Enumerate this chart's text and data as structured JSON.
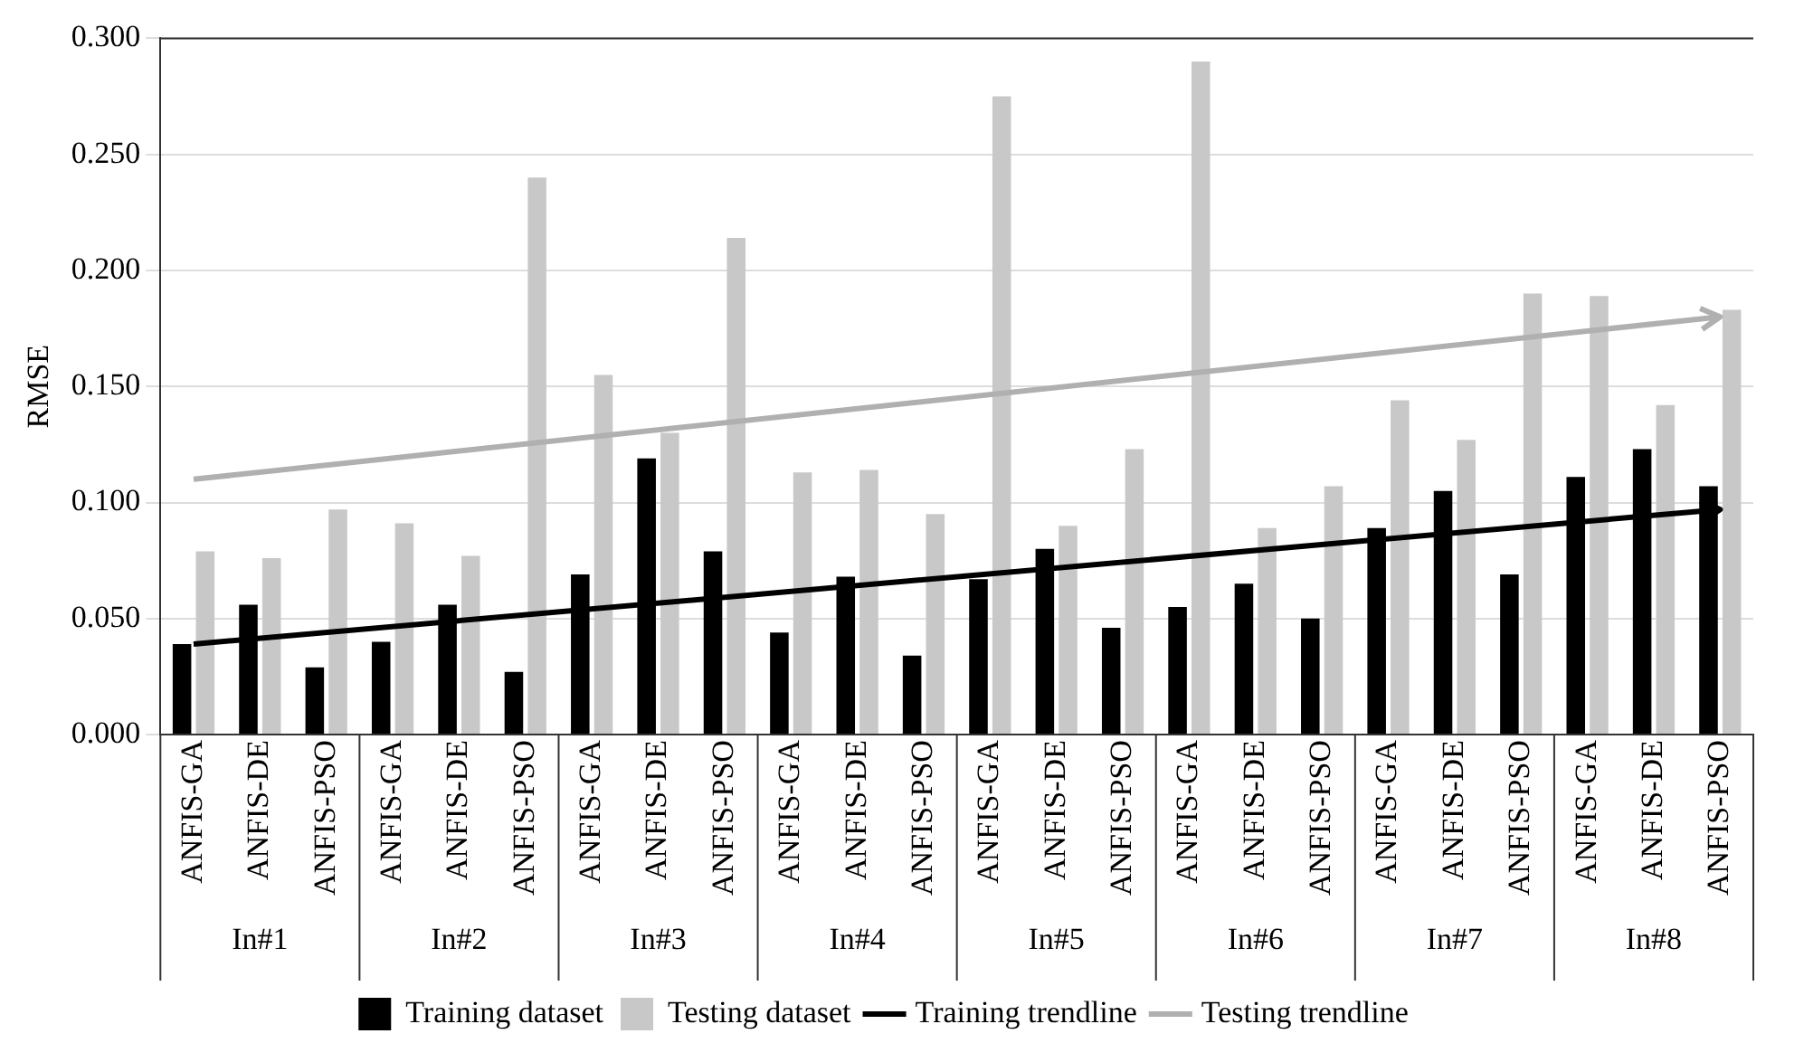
{
  "chart_data": {
    "type": "bar",
    "ylabel": "RMSE",
    "categories": [
      "ANFIS-GA",
      "ANFIS-DE",
      "ANFIS-PSO",
      "ANFIS-GA",
      "ANFIS-DE",
      "ANFIS-PSO",
      "ANFIS-GA",
      "ANFIS-DE",
      "ANFIS-PSO",
      "ANFIS-GA",
      "ANFIS-DE",
      "ANFIS-PSO",
      "ANFIS-GA",
      "ANFIS-DE",
      "ANFIS-PSO",
      "ANFIS-GA",
      "ANFIS-DE",
      "ANFIS-PSO",
      "ANFIS-GA",
      "ANFIS-DE",
      "ANFIS-PSO",
      "ANFIS-GA",
      "ANFIS-DE",
      "ANFIS-PSO"
    ],
    "series": [
      {
        "name": "Training dataset",
        "color": "#000000",
        "values": [
          0.039,
          0.056,
          0.029,
          0.04,
          0.056,
          0.027,
          0.069,
          0.119,
          0.079,
          0.044,
          0.068,
          0.034,
          0.067,
          0.08,
          0.046,
          0.055,
          0.065,
          0.05,
          0.089,
          0.105,
          0.069,
          0.111,
          0.123,
          0.107
        ]
      },
      {
        "name": "Testing dataset",
        "color": "#c8c8c8",
        "values": [
          0.079,
          0.076,
          0.097,
          0.091,
          0.077,
          0.24,
          0.155,
          0.13,
          0.214,
          0.113,
          0.114,
          0.095,
          0.275,
          0.09,
          0.123,
          0.29,
          0.089,
          0.107,
          0.144,
          0.127,
          0.19,
          0.189,
          0.142,
          0.183
        ]
      },
      {
        "name": "Training trendline",
        "type": "line",
        "color": "#000000",
        "values": [
          0.039,
          null,
          null,
          null,
          null,
          null,
          null,
          null,
          null,
          null,
          null,
          null,
          null,
          null,
          null,
          null,
          null,
          null,
          null,
          null,
          null,
          null,
          null,
          0.097
        ]
      },
      {
        "name": "Testing trendline",
        "type": "line",
        "color": "#b0b0b0",
        "values": [
          0.11,
          null,
          null,
          null,
          null,
          null,
          null,
          null,
          null,
          null,
          null,
          null,
          null,
          null,
          null,
          null,
          null,
          null,
          null,
          null,
          null,
          null,
          null,
          0.18
        ]
      }
    ],
    "annotations": [
      "In#1",
      "In#2",
      "In#3",
      "In#4",
      "In#5",
      "In#6",
      "In#7",
      "In#8"
    ],
    "ylim": [
      0,
      0.3
    ],
    "yticks": [
      {
        "value": 0,
        "label": "0.000"
      },
      {
        "value": 0.05,
        "label": "0.050"
      },
      {
        "value": 0.1,
        "label": "0.100"
      },
      {
        "value": 0.15,
        "label": "0.150"
      },
      {
        "value": 0.2,
        "label": "0.200"
      },
      {
        "value": 0.25,
        "label": "0.250"
      },
      {
        "value": 0.3,
        "label": "0.300"
      }
    ],
    "grid": "y",
    "legend": "bottom"
  }
}
